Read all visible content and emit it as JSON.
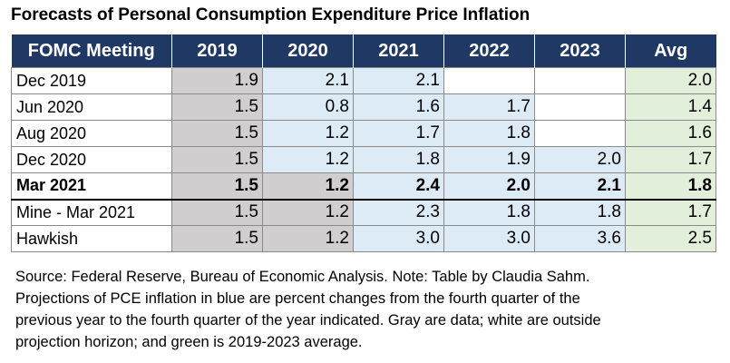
{
  "title": "Forecasts of Personal Consumption Expenditure Price Inflation",
  "colors": {
    "header": "#1f3864",
    "data_gray": "#d0cece",
    "projection_blue": "#ddebf7",
    "outside_white": "#ffffff",
    "average_green": "#e2efda"
  },
  "chart_data": {
    "type": "table",
    "title": "Forecasts of Personal Consumption Expenditure Price Inflation",
    "columns": [
      "FOMC Meeting",
      "2019",
      "2020",
      "2021",
      "2022",
      "2023",
      "Avg"
    ],
    "rows": [
      {
        "label": "Dec 2019",
        "bold": false,
        "cells": [
          {
            "v": "1.9",
            "t": "gray"
          },
          {
            "v": "2.1",
            "t": "blue"
          },
          {
            "v": "2.1",
            "t": "blue"
          },
          {
            "v": "",
            "t": "white"
          },
          {
            "v": "",
            "t": "white"
          },
          {
            "v": "2.0",
            "t": "green"
          }
        ]
      },
      {
        "label": "Jun 2020",
        "bold": false,
        "cells": [
          {
            "v": "1.5",
            "t": "gray"
          },
          {
            "v": "0.8",
            "t": "blue"
          },
          {
            "v": "1.6",
            "t": "blue"
          },
          {
            "v": "1.7",
            "t": "blue"
          },
          {
            "v": "",
            "t": "white"
          },
          {
            "v": "1.4",
            "t": "green"
          }
        ]
      },
      {
        "label": "Aug 2020",
        "bold": false,
        "cells": [
          {
            "v": "1.5",
            "t": "gray"
          },
          {
            "v": "1.2",
            "t": "blue"
          },
          {
            "v": "1.7",
            "t": "blue"
          },
          {
            "v": "1.8",
            "t": "blue"
          },
          {
            "v": "",
            "t": "white"
          },
          {
            "v": "1.6",
            "t": "green"
          }
        ]
      },
      {
        "label": "Dec 2020",
        "bold": false,
        "cells": [
          {
            "v": "1.5",
            "t": "gray"
          },
          {
            "v": "1.2",
            "t": "blue"
          },
          {
            "v": "1.8",
            "t": "blue"
          },
          {
            "v": "1.9",
            "t": "blue"
          },
          {
            "v": "2.0",
            "t": "blue"
          },
          {
            "v": "1.7",
            "t": "green"
          }
        ]
      },
      {
        "label": "Mar 2021",
        "bold": true,
        "cells": [
          {
            "v": "1.5",
            "t": "gray"
          },
          {
            "v": "1.2",
            "t": "gray"
          },
          {
            "v": "2.4",
            "t": "blue"
          },
          {
            "v": "2.0",
            "t": "blue"
          },
          {
            "v": "2.1",
            "t": "blue"
          },
          {
            "v": "1.8",
            "t": "green"
          }
        ]
      },
      {
        "label": "Mine - Mar 2021",
        "bold": false,
        "cells": [
          {
            "v": "1.5",
            "t": "gray"
          },
          {
            "v": "1.2",
            "t": "gray"
          },
          {
            "v": "2.3",
            "t": "blue"
          },
          {
            "v": "1.8",
            "t": "blue"
          },
          {
            "v": "1.8",
            "t": "blue"
          },
          {
            "v": "1.7",
            "t": "green"
          }
        ]
      },
      {
        "label": "Hawkish",
        "bold": false,
        "cells": [
          {
            "v": "1.5",
            "t": "gray"
          },
          {
            "v": "1.2",
            "t": "gray"
          },
          {
            "v": "3.0",
            "t": "blue"
          },
          {
            "v": "3.0",
            "t": "blue"
          },
          {
            "v": "3.6",
            "t": "blue"
          },
          {
            "v": "2.5",
            "t": "green"
          }
        ]
      }
    ]
  },
  "note_lines": [
    "Source: Federal Reserve, Bureau of Economic Analysis. Note: Table by Claudia Sahm.",
    "Projections of PCE inflation in blue are percent changes from the fourth quarter of the",
    "previous year to the fourth quarter of the year indicated. Gray are data; white are outside",
    "projection horizon; and green is 2019-2023 average."
  ]
}
